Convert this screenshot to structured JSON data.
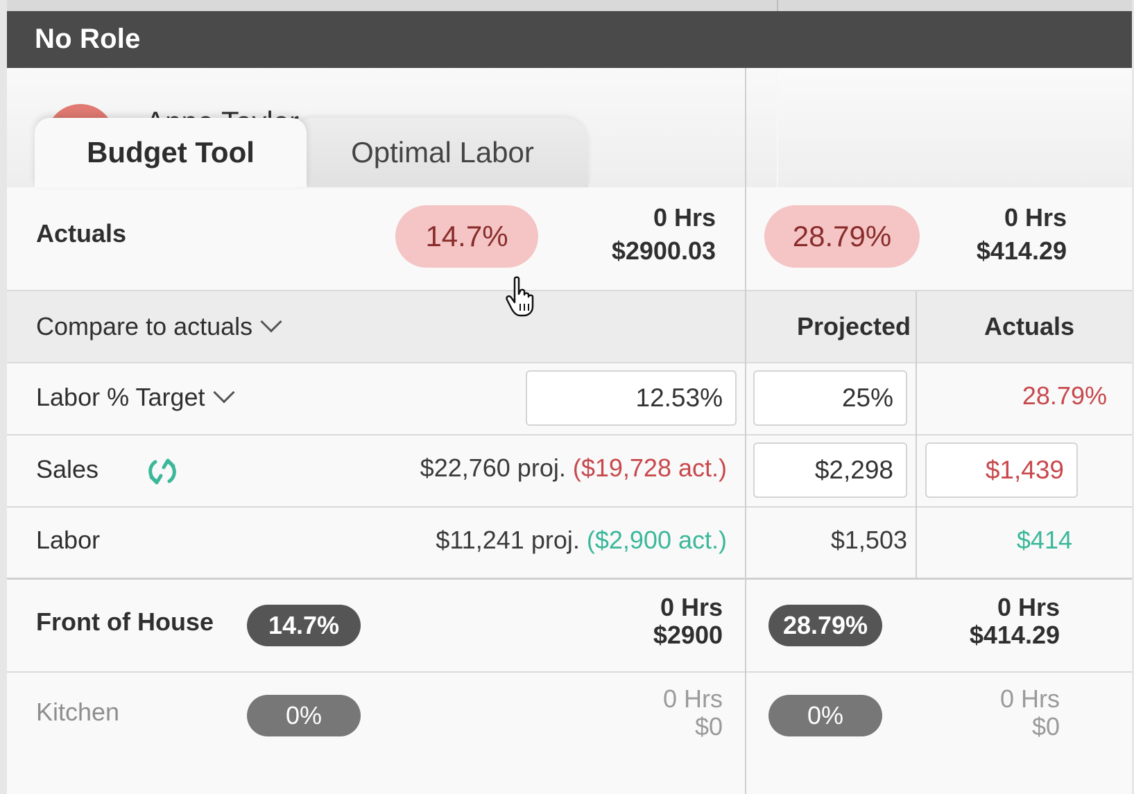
{
  "role": {
    "title": "No Role"
  },
  "employee": {
    "name": "Anne Taylor"
  },
  "tabs": [
    {
      "label": "Budget Tool",
      "active": true
    },
    {
      "label": "Optimal Labor",
      "active": false
    }
  ],
  "actuals": {
    "label": "Actuals",
    "left": {
      "pct": "14.7%",
      "hrs": "0 Hrs",
      "amount": "$2900.03"
    },
    "right": {
      "pct": "28.79%",
      "hrs": "0 Hrs",
      "amount": "$414.29"
    }
  },
  "compare": {
    "label": "Compare to actuals",
    "col_projected": "Projected",
    "col_actuals": "Actuals"
  },
  "labor_target": {
    "label": "Labor % Target",
    "value": "12.53%",
    "projected": "25%",
    "actuals": "28.79%"
  },
  "sales": {
    "label": "Sales",
    "proj": "$22,760 proj.",
    "act": "($19,728 act.)",
    "projected": "$2,298",
    "actuals": "$1,439"
  },
  "labor": {
    "label": "Labor",
    "proj": "$11,241 proj.",
    "act": "($2,900 act.)",
    "projected": "$1,503",
    "actuals": "$414"
  },
  "front_of_house": {
    "label": "Front of House",
    "left": {
      "pct": "14.7%",
      "hrs": "0 Hrs",
      "amount": "$2900"
    },
    "right": {
      "pct": "28.79%",
      "hrs": "0 Hrs",
      "amount": "$414.29"
    }
  },
  "kitchen": {
    "label": "Kitchen",
    "left": {
      "pct": "0%",
      "hrs": "0 Hrs",
      "amount": "$0"
    },
    "right": {
      "pct": "0%",
      "hrs": "0 Hrs",
      "amount": "$0"
    }
  },
  "colors": {
    "header_bg": "#4a4a4a",
    "pink_pill": "#f4c5c4",
    "red_text": "#c8484c",
    "green_text": "#3bb79a",
    "dark_pill": "#555555"
  },
  "icons": {
    "sales_sync": "sync-icon",
    "cursor": "hand-pointer-icon"
  }
}
